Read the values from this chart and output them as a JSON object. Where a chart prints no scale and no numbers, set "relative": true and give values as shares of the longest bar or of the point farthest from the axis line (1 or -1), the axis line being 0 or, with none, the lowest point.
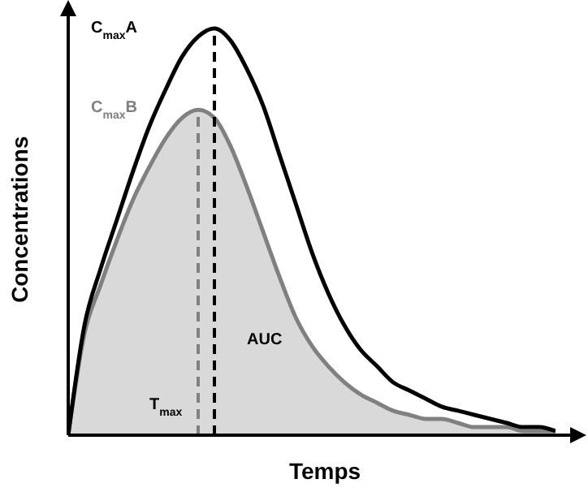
{
  "chart_data": {
    "type": "line",
    "relative": true,
    "xlabel": "Temps",
    "ylabel": "Concentrations",
    "marker": "none",
    "categories": [
      null,
      null,
      null,
      null,
      null,
      null,
      null,
      null,
      null,
      null,
      null,
      null,
      null,
      null,
      null,
      null,
      null,
      null,
      null,
      null,
      null,
      null,
      null,
      null,
      null,
      null,
      null,
      null,
      null,
      null,
      null
    ],
    "series": [
      {
        "type": "area",
        "color": "#808080",
        "values": [
          0,
          0.25,
          0.37,
          0.48,
          0.58,
          0.66,
          0.73,
          0.78,
          0.8,
          0.78,
          0.71,
          0.61,
          0.5,
          0.39,
          0.29,
          0.22,
          0.17,
          0.13,
          0.1,
          0.08,
          0.06,
          0.05,
          0.04,
          0.04,
          0.03,
          0.02,
          0.02,
          0.02,
          0.01,
          0.01,
          0.01
        ]
      },
      {
        "color": "#000000",
        "values": [
          0,
          0.27,
          0.41,
          0.53,
          0.65,
          0.76,
          0.85,
          0.93,
          0.98,
          1,
          0.97,
          0.9,
          0.81,
          0.69,
          0.57,
          0.45,
          0.35,
          0.27,
          0.21,
          0.17,
          0.13,
          0.11,
          0.09,
          0.07,
          0.06,
          0.05,
          0.04,
          0.03,
          0.02,
          0.02,
          0.01
        ]
      }
    ],
    "annotations": [
      "C$_{max}$A",
      "C$_{max}$B",
      "T$_{max}$",
      "AUC"
    ]
  }
}
